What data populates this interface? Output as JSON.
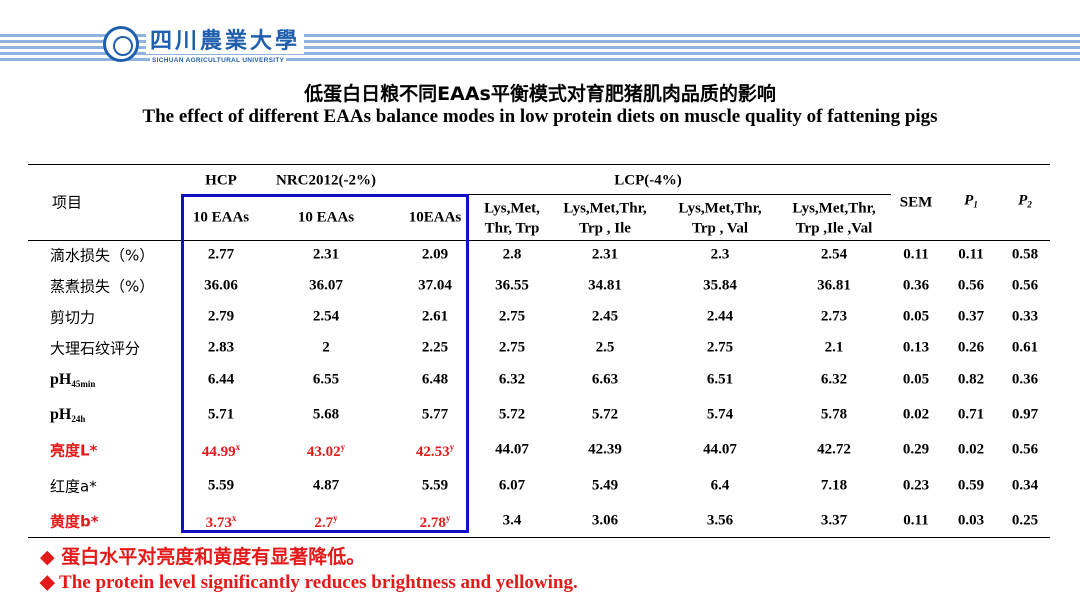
{
  "header": {
    "university_cn": "四川農業大學",
    "university_en": "SICHUAN AGRICULTURAL UNIVERSITY",
    "brand_color": "#1f5fae"
  },
  "title_cn": "低蛋白日粮不同EAAs平衡模式对育肥猪肌肉品质的影响",
  "title_en": "The effect of different EAAs balance modes in low protein diets on muscle quality of fattening pigs",
  "table": {
    "row_header": "项目",
    "group_hcp": "HCP",
    "group_nrc": "NRC2012(-2%)",
    "group_lcp": "LCP(-4%)",
    "sem": "SEM",
    "p1": "P",
    "p1_sub": "1",
    "p2": "P",
    "p2_sub": "2",
    "columns": [
      {
        "line1": "10 EAAs",
        "line2": ""
      },
      {
        "line1": "10 EAAs",
        "line2": ""
      },
      {
        "line1": "10EAAs",
        "line2": ""
      },
      {
        "line1": "Lys,Met,",
        "line2": "Thr, Trp"
      },
      {
        "line1": "Lys,Met,Thr,",
        "line2": "Trp , Ile"
      },
      {
        "line1": "Lys,Met,Thr,",
        "line2": "Trp , Val"
      },
      {
        "line1": "Lys,Met,Thr,",
        "line2": "Trp ,Ile ,Val"
      }
    ],
    "rows": [
      {
        "label": "滴水损失（%）",
        "values": [
          "2.77",
          "2.31",
          "2.09",
          "2.8",
          "2.31",
          "2.3",
          "2.54"
        ],
        "sup": [
          "",
          "",
          ""
        ],
        "sem": "0.11",
        "p1": "0.11",
        "p2": "0.58"
      },
      {
        "label": "蒸煮损失（%）",
        "values": [
          "36.06",
          "36.07",
          "37.04",
          "36.55",
          "34.81",
          "35.84",
          "36.81"
        ],
        "sup": [
          "",
          "",
          ""
        ],
        "sem": "0.36",
        "p1": "0.56",
        "p2": "0.56"
      },
      {
        "label": "剪切力",
        "values": [
          "2.79",
          "2.54",
          "2.61",
          "2.75",
          "2.45",
          "2.44",
          "2.73"
        ],
        "sup": [
          "",
          "",
          ""
        ],
        "sem": "0.05",
        "p1": "0.37",
        "p2": "0.33"
      },
      {
        "label": "大理石纹评分",
        "values": [
          "2.83",
          "2",
          "2.25",
          "2.75",
          "2.5",
          "2.75",
          "2.1"
        ],
        "sup": [
          "",
          "",
          ""
        ],
        "sem": "0.13",
        "p1": "0.26",
        "p2": "0.61"
      },
      {
        "label": "pH",
        "label_sub": "45min",
        "values": [
          "6.44",
          "6.55",
          "6.48",
          "6.32",
          "6.63",
          "6.51",
          "6.32"
        ],
        "sup": [
          "",
          "",
          ""
        ],
        "sem": "0.05",
        "p1": "0.82",
        "p2": "0.36"
      },
      {
        "label": "pH",
        "label_sub": "24h",
        "values": [
          "5.71",
          "5.68",
          "5.77",
          "5.72",
          "5.72",
          "5.74",
          "5.78"
        ],
        "sup": [
          "",
          "",
          ""
        ],
        "sem": "0.02",
        "p1": "0.71",
        "p2": "0.97"
      },
      {
        "label": "亮度L*",
        "values": [
          "44.99",
          "43.02",
          "42.53",
          "44.07",
          "42.39",
          "44.07",
          "42.72"
        ],
        "sup": [
          "x",
          "y",
          "y"
        ],
        "sem": "0.29",
        "p1": "0.02",
        "p2": "0.56",
        "highlight": true
      },
      {
        "label": "红度a*",
        "values": [
          "5.59",
          "4.87",
          "5.59",
          "6.07",
          "5.49",
          "6.4",
          "7.18"
        ],
        "sup": [
          "",
          "",
          ""
        ],
        "sem": "0.23",
        "p1": "0.59",
        "p2": "0.34"
      },
      {
        "label": "黄度b*",
        "values": [
          "3.73",
          "2.7",
          "2.78",
          "3.4",
          "3.06",
          "3.56",
          "3.37"
        ],
        "sup": [
          "x",
          "y",
          "y"
        ],
        "sem": "0.11",
        "p1": "0.03",
        "p2": "0.25",
        "highlight": true
      }
    ]
  },
  "notes": {
    "bullet": "◆",
    "cn": "蛋白水平对亮度和黄度有显著降低。",
    "en": "The protein level significantly reduces brightness and yellowing."
  },
  "colors": {
    "highlight": "#e41a1a",
    "box": "#1010c8"
  }
}
